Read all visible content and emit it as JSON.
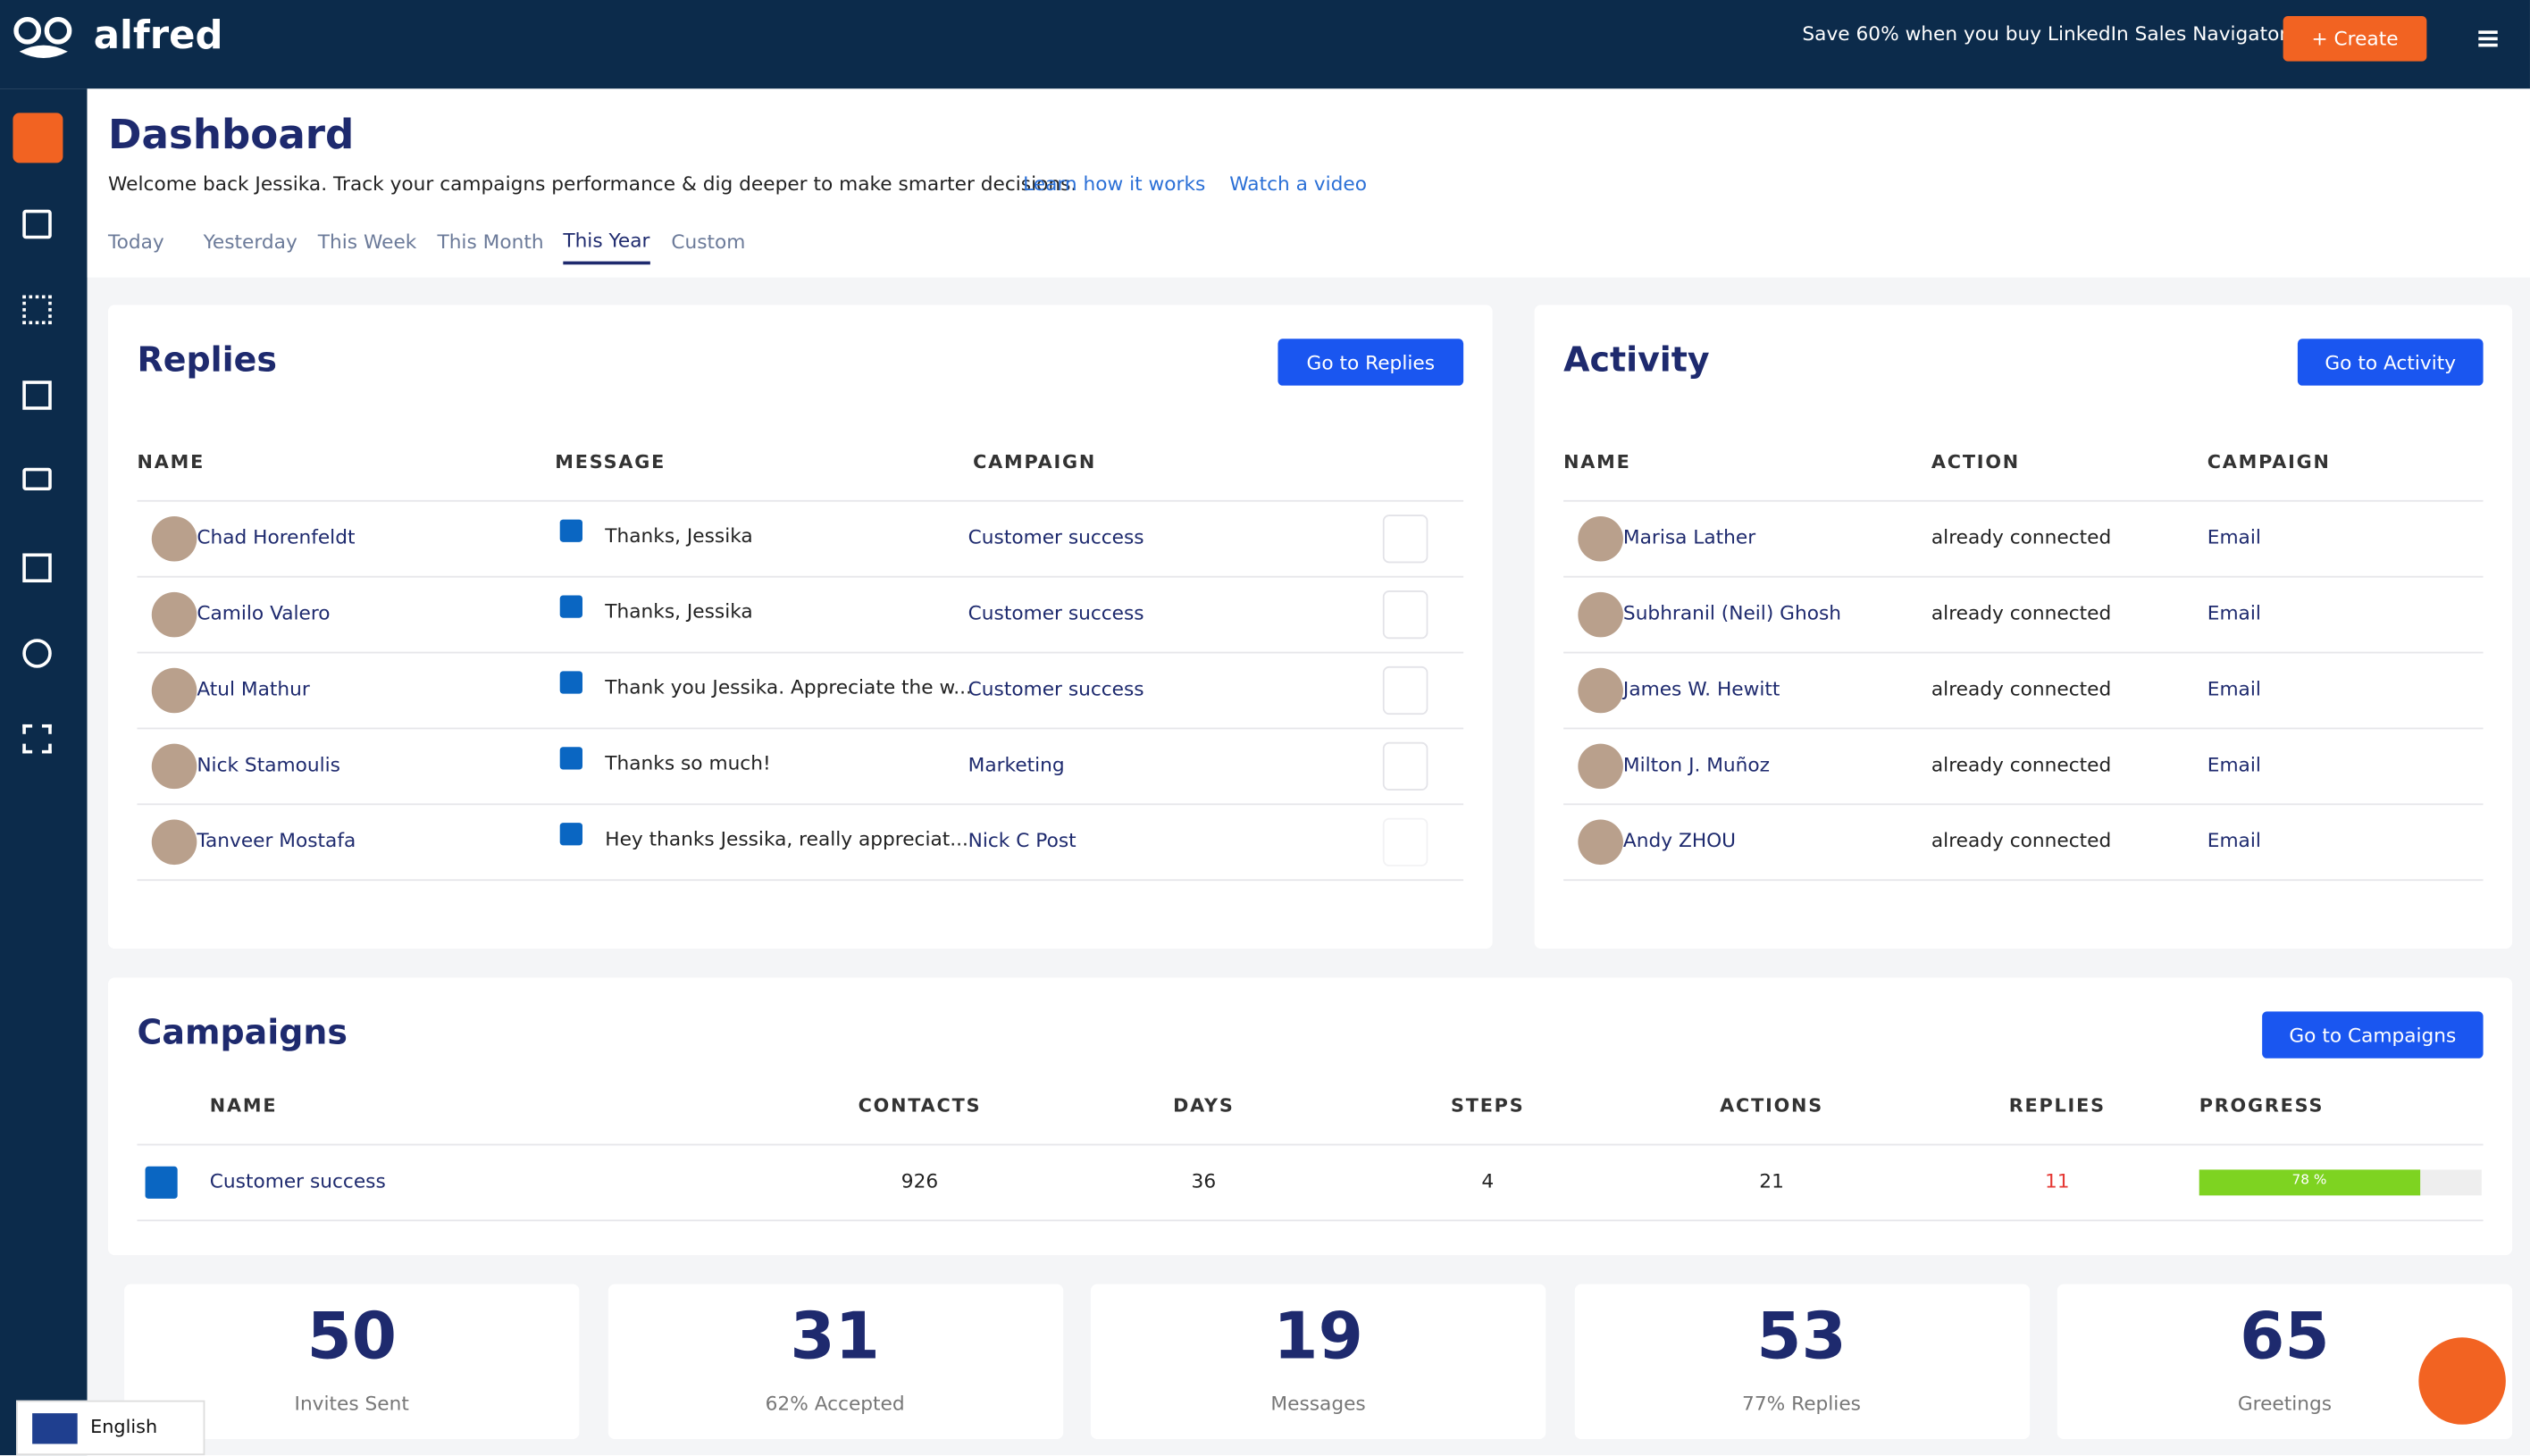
{
  "header": {
    "brand": "alfred",
    "promo": "Save 60% when you buy LinkedIn Sales Navigator",
    "create_button": "+ Create"
  },
  "page": {
    "title": "Dashboard",
    "welcome": "Welcome back Jessika. Track your campaigns performance & dig deeper to make smarter decisions.",
    "learn_link": "Learn how it works",
    "video_link": "Watch a video",
    "tabs": [
      "Today",
      "Yesterday",
      "This Week",
      "This Month",
      "This Year",
      "Custom"
    ],
    "active_tab": 4
  },
  "replies": {
    "title": "Replies",
    "button": "Go to Replies",
    "columns": [
      "NAME",
      "MESSAGE",
      "CAMPAIGN"
    ],
    "rows": [
      [
        "Chad Horenfeldt",
        "Thanks, Jessika",
        "Customer success"
      ],
      [
        "Camilo Valero",
        "Thanks, Jessika",
        "Customer success"
      ],
      [
        "Atul Mathur",
        "Thank you Jessika. Appreciate the w...",
        "Customer success"
      ],
      [
        "Nick Stamoulis",
        "Thanks so much!",
        "Marketing"
      ],
      [
        "Tanveer Mostafa",
        "Hey thanks Jessika, really appreciat...",
        "Nick C Post"
      ]
    ]
  },
  "activity": {
    "title": "Activity",
    "button": "Go to Activity",
    "columns": [
      "NAME",
      "ACTION",
      "CAMPAIGN"
    ],
    "rows": [
      [
        "Marisa Lather",
        "already connected",
        "Email"
      ],
      [
        "Subhranil (Neil) Ghosh",
        "already connected",
        "Email"
      ],
      [
        "James W. Hewitt",
        "already connected",
        "Email"
      ],
      [
        "Milton J. Muñoz",
        "already connected",
        "Email"
      ],
      [
        "Andy ZHOU",
        "already connected",
        "Email"
      ]
    ]
  },
  "campaigns": {
    "title": "Campaigns",
    "button": "Go to Campaigns",
    "columns": [
      "NAME",
      "CONTACTS",
      "DAYS",
      "STEPS",
      "ACTIONS",
      "REPLIES",
      "PROGRESS"
    ],
    "rows": [
      {
        "name": "Customer success",
        "contacts": 926,
        "days": 36,
        "steps": 4,
        "actions": 21,
        "replies": 11,
        "progress": {
          "value": 78,
          "label": "78 %"
        }
      }
    ]
  },
  "stats": [
    {
      "value": 50,
      "label": "Invites Sent"
    },
    {
      "value": 31,
      "label": "62% Accepted"
    },
    {
      "value": 19,
      "label": "Messages"
    },
    {
      "value": 53,
      "label": "77% Replies"
    },
    {
      "value": 65,
      "label": "Greetings"
    }
  ],
  "language": "English"
}
